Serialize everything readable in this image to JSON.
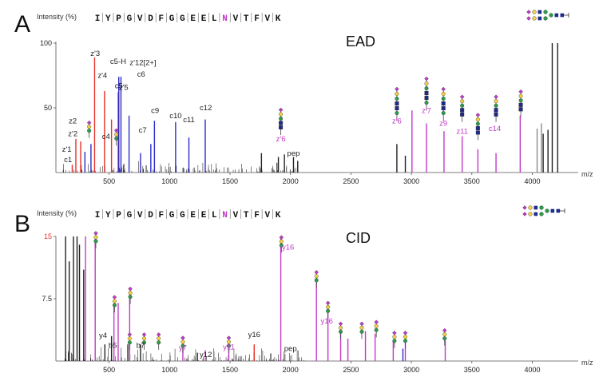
{
  "chart_data": [
    {
      "type": "bar",
      "panel_label": "A",
      "title": "EAD",
      "ylabel": "Intensity (%)",
      "xlabel": "m/z",
      "xlim": [
        60,
        4380
      ],
      "ylim": [
        0,
        100
      ],
      "x_ticks": [
        500,
        1000,
        1500,
        2000,
        2500,
        3000,
        3500,
        4000
      ],
      "y_ticks": [
        50,
        100
      ],
      "sequence": [
        "I",
        "Y",
        "P",
        "G",
        "V",
        "D",
        "F",
        "G",
        "G",
        "E",
        "E",
        "L",
        "N",
        "V",
        "T",
        "F",
        "V",
        "K"
      ],
      "glycosite_index": 12,
      "colors": {
        "red": "#e8312b",
        "blue": "#2b2bc9",
        "magenta": "#c23ac8",
        "black": "#222222",
        "grey": "#8a8a8a"
      },
      "series": [
        {
          "color": "red",
          "peaks": [
            [
              195,
              6
            ],
            [
              225,
              26
            ],
            [
              265,
              24
            ],
            [
              380,
              89
            ],
            [
              462,
              63
            ],
            [
              520,
              41
            ],
            [
              575,
              62
            ]
          ]
        },
        {
          "color": "blue",
          "peaks": [
            [
              300,
              16
            ],
            [
              350,
              22
            ],
            [
              580,
              74
            ],
            [
              598,
              74
            ],
            [
              665,
              44
            ],
            [
              760,
              15
            ],
            [
              845,
              22
            ],
            [
              875,
              40
            ],
            [
              1050,
              39
            ],
            [
              1160,
              27
            ],
            [
              1295,
              41
            ]
          ]
        },
        {
          "color": "magenta",
          "peaks": [
            [
              3005,
              48
            ],
            [
              3125,
              38
            ],
            [
              3270,
              32
            ],
            [
              3420,
              28
            ],
            [
              3550,
              18
            ],
            [
              3700,
              15
            ],
            [
              3900,
              44
            ]
          ]
        },
        {
          "color": "black",
          "peaks": [
            [
              1760,
              15
            ],
            [
              1900,
              12
            ],
            [
              1950,
              14
            ],
            [
              2025,
              12
            ],
            [
              2060,
              9
            ],
            [
              2880,
              22
            ],
            [
              2950,
              13
            ],
            [
              4090,
              30
            ],
            [
              4130,
              33
            ],
            [
              4165,
              100
            ],
            [
              4210,
              100
            ]
          ]
        },
        {
          "color": "grey",
          "peaks": [
            [
              4040,
              34
            ],
            [
              4075,
              38
            ]
          ]
        }
      ],
      "labels": [
        {
          "text": "c1",
          "mz": 160,
          "y": 8,
          "color": "black"
        },
        {
          "text": "z'1",
          "mz": 150,
          "y": 16,
          "color": "black"
        },
        {
          "text": "z'2",
          "mz": 200,
          "y": 28,
          "color": "black"
        },
        {
          "text": "z2",
          "mz": 200,
          "y": 38,
          "color": "black"
        },
        {
          "text": "c4",
          "mz": 475,
          "y": 26,
          "color": "black"
        },
        {
          "text": "z'3",
          "mz": 385,
          "y": 90,
          "color": "black"
        },
        {
          "text": "z'4",
          "mz": 445,
          "y": 73,
          "color": "black"
        },
        {
          "text": "c5-H",
          "mz": 575,
          "y": 84,
          "color": "black"
        },
        {
          "text": "c5",
          "mz": 580,
          "y": 65,
          "color": "black"
        },
        {
          "text": "z'12[2+]",
          "mz": 780,
          "y": 83,
          "color": "black"
        },
        {
          "text": "c6",
          "mz": 765,
          "y": 74,
          "color": "black"
        },
        {
          "text": "z'5",
          "mz": 620,
          "y": 64,
          "color": "black"
        },
        {
          "text": "c9",
          "mz": 880,
          "y": 46,
          "color": "black"
        },
        {
          "text": "c7",
          "mz": 778,
          "y": 31,
          "color": "black"
        },
        {
          "text": "c10",
          "mz": 1050,
          "y": 42,
          "color": "black"
        },
        {
          "text": "c11",
          "mz": 1160,
          "y": 39,
          "color": "black"
        },
        {
          "text": "c12",
          "mz": 1300,
          "y": 48,
          "color": "black"
        },
        {
          "text": "z'6",
          "mz": 1920,
          "y": 24,
          "color": "magenta"
        },
        {
          "text": "pep",
          "mz": 2025,
          "y": 13,
          "color": "black"
        },
        {
          "text": "z'6",
          "mz": 2880,
          "y": 38,
          "color": "magenta"
        },
        {
          "text": "z'7",
          "mz": 3125,
          "y": 46,
          "color": "magenta"
        },
        {
          "text": "z9",
          "mz": 3265,
          "y": 36,
          "color": "magenta"
        },
        {
          "text": "z11",
          "mz": 3420,
          "y": 30,
          "color": "magenta"
        },
        {
          "text": "c14",
          "mz": 3690,
          "y": 32,
          "color": "magenta"
        }
      ],
      "glycans": [
        {
          "mz": 335,
          "y": 36,
          "size": "s"
        },
        {
          "mz": 560,
          "y": 30,
          "size": "s"
        },
        {
          "mz": 1920,
          "y": 46,
          "size": "m"
        },
        {
          "mz": 2880,
          "y": 62,
          "size": "l"
        },
        {
          "mz": 3125,
          "y": 70,
          "size": "l"
        },
        {
          "mz": 3265,
          "y": 62,
          "size": "l"
        },
        {
          "mz": 3420,
          "y": 56,
          "size": "m"
        },
        {
          "mz": 3550,
          "y": 42,
          "size": "m"
        },
        {
          "mz": 3700,
          "y": 56,
          "size": "m"
        },
        {
          "mz": 3905,
          "y": 60,
          "size": "m"
        }
      ]
    },
    {
      "type": "bar",
      "panel_label": "B",
      "title": "CID",
      "ylabel": "Intensity (%)",
      "xlabel": "m/z",
      "xlim": [
        60,
        4380
      ],
      "ylim": [
        0,
        15
      ],
      "x_ticks": [
        500,
        1000,
        1500,
        2000,
        2500,
        3000,
        3500,
        4000
      ],
      "y_ticks": [
        7.5,
        15
      ],
      "sequence": [
        "I",
        "Y",
        "P",
        "G",
        "V",
        "D",
        "F",
        "G",
        "G",
        "E",
        "E",
        "L",
        "N",
        "V",
        "T",
        "F",
        "V",
        "K"
      ],
      "glycosite_index": 12,
      "colors": {
        "red": "#e8312b",
        "blue": "#2b2bc9",
        "magenta": "#c23ac8",
        "black": "#222222",
        "grey": "#8a8a8a"
      },
      "series": [
        {
          "color": "black",
          "peaks": [
            [
              140,
              15
            ],
            [
              170,
              12
            ],
            [
              205,
              15
            ],
            [
              235,
              15
            ],
            [
              255,
              14
            ],
            [
              290,
              11
            ],
            [
              465,
              2
            ],
            [
              520,
              3
            ],
            [
              655,
              2
            ],
            [
              760,
              2
            ],
            [
              1230,
              1
            ],
            [
              1700,
              1
            ]
          ]
        },
        {
          "color": "magenta",
          "peaks": [
            [
              305,
              15
            ],
            [
              385,
              15
            ],
            [
              540,
              6.5
            ],
            [
              575,
              7
            ],
            [
              670,
              8
            ],
            [
              1110,
              1.8
            ],
            [
              1295,
              1.3
            ],
            [
              1490,
              1.8
            ],
            [
              1920,
              15
            ],
            [
              2215,
              10
            ],
            [
              2310,
              6.3
            ],
            [
              2415,
              3.8
            ],
            [
              2475,
              2.7
            ],
            [
              2620,
              3.6
            ],
            [
              2700,
              3.3
            ],
            [
              2850,
              2.4
            ],
            [
              2950,
              2.5
            ],
            [
              3280,
              2.5
            ]
          ]
        },
        {
          "color": "red",
          "peaks": [
            [
              1700,
              2
            ]
          ]
        },
        {
          "color": "blue",
          "peaks": [
            [
              2930,
              1.5
            ]
          ]
        }
      ],
      "labels": [
        {
          "text": "y4",
          "mz": 450,
          "y": 2.8,
          "color": "black"
        },
        {
          "text": "b5",
          "mz": 530,
          "y": 1.6,
          "color": "black"
        },
        {
          "text": "b7",
          "mz": 760,
          "y": 1.6,
          "color": "black"
        },
        {
          "text": "y7",
          "mz": 1110,
          "y": 1.3,
          "color": "magenta"
        },
        {
          "text": "y12",
          "mz": 1300,
          "y": 0.5,
          "color": "black"
        },
        {
          "text": "y11",
          "mz": 1490,
          "y": 1.4,
          "color": "magenta"
        },
        {
          "text": "y16",
          "mz": 1700,
          "y": 2.9,
          "color": "black"
        },
        {
          "text": "pep",
          "mz": 2000,
          "y": 1.2,
          "color": "black"
        },
        {
          "text": "y16",
          "mz": 1980,
          "y": 13.4,
          "color": "magenta"
        },
        {
          "text": "y16",
          "mz": 2300,
          "y": 4.5,
          "color": "magenta"
        }
      ],
      "glycans": [
        {
          "mz": 390,
          "y": 15.3,
          "size": "s"
        },
        {
          "mz": 545,
          "y": 7.3,
          "size": "s"
        },
        {
          "mz": 675,
          "y": 8.3,
          "size": "s"
        },
        {
          "mz": 670,
          "y": 2.8,
          "size": "s"
        },
        {
          "mz": 790,
          "y": 2.8,
          "size": "s"
        },
        {
          "mz": 910,
          "y": 2.8,
          "size": "s"
        },
        {
          "mz": 1110,
          "y": 2.4,
          "size": "s"
        },
        {
          "mz": 1490,
          "y": 2.4,
          "size": "s"
        },
        {
          "mz": 1925,
          "y": 14.5,
          "size": "s"
        },
        {
          "mz": 2215,
          "y": 10.3,
          "size": "s"
        },
        {
          "mz": 2310,
          "y": 6.6,
          "size": "s"
        },
        {
          "mz": 2415,
          "y": 4.1,
          "size": "s"
        },
        {
          "mz": 2590,
          "y": 4.1,
          "size": "s"
        },
        {
          "mz": 2710,
          "y": 4.3,
          "size": "s"
        },
        {
          "mz": 2860,
          "y": 3.0,
          "size": "s"
        },
        {
          "mz": 2950,
          "y": 3.0,
          "size": "s"
        },
        {
          "mz": 3275,
          "y": 3.3,
          "size": "s"
        }
      ]
    }
  ]
}
